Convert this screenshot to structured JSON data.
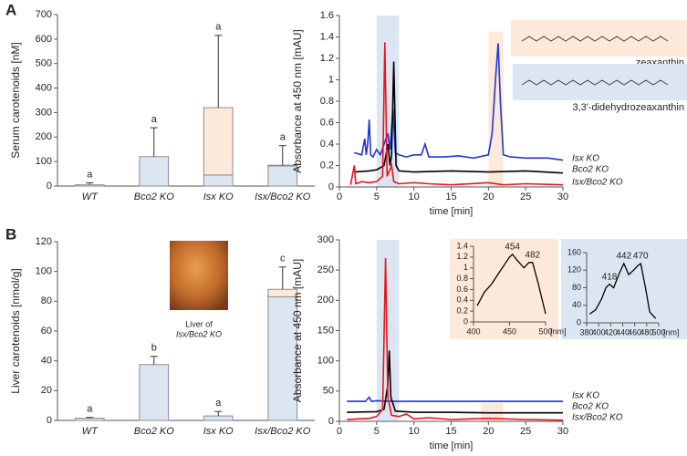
{
  "panel_labels": [
    "A",
    "B"
  ],
  "chart_data": [
    {
      "type": "bar",
      "ylabel": "Serum carotenoids [nM]",
      "categories": [
        "WT",
        "Bco2 KO",
        "Isx KO",
        "Isx/Bco2 KO"
      ],
      "series": [
        {
          "color": "#dce6f2",
          "values": [
            5,
            120,
            45,
            82
          ]
        },
        {
          "color": "#fde9d9",
          "values": [
            0,
            0,
            275,
            3
          ]
        }
      ],
      "errors": [
        8,
        118,
        295,
        80
      ],
      "letters": [
        "a",
        "a",
        "a",
        "a"
      ],
      "ylim": [
        0,
        700
      ],
      "yticks": [
        0,
        100,
        200,
        300,
        400,
        500,
        600,
        700
      ]
    },
    {
      "type": "line",
      "ylabel": "Absorbance at 450 nm [mAU]",
      "xlabel": "time [min]",
      "xlim": [
        0,
        30
      ],
      "xticks": [
        0,
        5,
        10,
        15,
        20,
        25,
        30
      ],
      "ylim": [
        0,
        1.6
      ],
      "yticks": [
        0,
        0.2,
        0.4,
        0.6,
        0.8,
        1,
        1.2,
        1.4,
        1.6
      ],
      "highlights": [
        {
          "x": [
            5,
            8
          ],
          "y": [
            0,
            1.6
          ],
          "color": "#dce6f2"
        },
        {
          "x": [
            20,
            22
          ],
          "y": [
            0,
            1.45
          ],
          "color": "#fde9d9"
        }
      ],
      "structures": [
        "zeaxanthin",
        "3,3′-didehydrozeaxanthin"
      ],
      "series": [
        {
          "name": "Isx KO",
          "color": "#1f35d6",
          "x": [
            2,
            3,
            3.4,
            3.6,
            3.8,
            4,
            4.2,
            4.5,
            5,
            5.5,
            6,
            6.5,
            6.8,
            7.2,
            7.5,
            8,
            9,
            10,
            11,
            11.5,
            12,
            14,
            16,
            18,
            20,
            20.5,
            21,
            21.3,
            21.6,
            22,
            23,
            25,
            28,
            30
          ],
          "values": [
            0.32,
            0.3,
            0.45,
            0.3,
            0.4,
            0.63,
            0.3,
            0.28,
            0.35,
            0.3,
            0.4,
            0.5,
            0.35,
            0.73,
            0.32,
            0.3,
            0.28,
            0.3,
            0.3,
            0.4,
            0.28,
            0.28,
            0.29,
            0.27,
            0.3,
            0.5,
            1.05,
            1.34,
            0.8,
            0.3,
            0.28,
            0.27,
            0.27,
            0.25
          ]
        },
        {
          "name": "Bco2 KO",
          "color": "#000000",
          "x": [
            2,
            4,
            5,
            6,
            6.5,
            6.8,
            7,
            7.3,
            7.6,
            8,
            10,
            15,
            20,
            25,
            30
          ],
          "values": [
            0.14,
            0.15,
            0.16,
            0.2,
            0.4,
            0.2,
            0.3,
            1.17,
            0.2,
            0.15,
            0.14,
            0.15,
            0.14,
            0.15,
            0.13
          ]
        },
        {
          "name": "Isx/Bco2 KO",
          "color": "#e8141b",
          "x": [
            1.5,
            2,
            2.2,
            3,
            4,
            5,
            5.8,
            6.1,
            6.4,
            7,
            7.3,
            8,
            10,
            12,
            15,
            20,
            22,
            25,
            30
          ],
          "values": [
            0.02,
            0.2,
            0.03,
            0.05,
            0.04,
            0.05,
            0.1,
            1.35,
            0.1,
            0.2,
            0.05,
            0.03,
            0.04,
            0.03,
            0.02,
            0.04,
            0.02,
            0.03,
            0.02
          ]
        }
      ]
    },
    {
      "type": "bar",
      "ylabel": "Liver carotenoids [nmol/g]",
      "categories": [
        "WT",
        "Bco2 KO",
        "Isx KO",
        "Isx/Bco2 KO"
      ],
      "series": [
        {
          "color": "#dce6f2",
          "values": [
            1.5,
            37.5,
            3,
            83
          ]
        },
        {
          "color": "#fde9d9",
          "values": [
            0,
            0,
            0,
            5
          ]
        }
      ],
      "errors": [
        0.5,
        5.5,
        3,
        15
      ],
      "letters": [
        "a",
        "b",
        "a",
        "c"
      ],
      "photo_caption": [
        "Liver of",
        "Isx/Bco2 KO"
      ],
      "ylim": [
        0,
        120
      ],
      "yticks": [
        0,
        20,
        40,
        60,
        80,
        100,
        120
      ]
    },
    {
      "type": "line",
      "ylabel": "Absorbance at 450 nm [mAU]",
      "xlabel": "time [min]",
      "xlim": [
        0,
        30
      ],
      "xticks": [
        0,
        5,
        10,
        15,
        20,
        25,
        30
      ],
      "ylim": [
        0,
        300
      ],
      "yticks": [
        0,
        50,
        100,
        150,
        200,
        250,
        300
      ],
      "highlights": [
        {
          "x": [
            5,
            8
          ],
          "y": [
            0,
            300
          ],
          "color": "#dce6f2"
        },
        {
          "x": [
            19,
            22
          ],
          "y": [
            0,
            30
          ],
          "color": "#fde9d9"
        }
      ],
      "series": [
        {
          "name": "Isx KO",
          "color": "#1f35d6",
          "x": [
            1,
            3.5,
            4,
            4.3,
            5,
            7,
            30
          ],
          "values": [
            33,
            33,
            40,
            33,
            34,
            33,
            33
          ]
        },
        {
          "name": "Bco2 KO",
          "color": "#000000",
          "x": [
            1,
            5,
            6,
            6.5,
            6.7,
            6.9,
            7.5,
            10,
            15,
            20,
            30
          ],
          "values": [
            15,
            16,
            20,
            60,
            117,
            40,
            17,
            15,
            15,
            14,
            14
          ]
        },
        {
          "name": "Isx/Bco2 KO",
          "color": "#e8141b",
          "x": [
            1,
            4,
            5,
            5.8,
            6.2,
            6.5,
            7,
            8,
            9,
            10,
            12,
            15,
            20,
            25,
            30
          ],
          "values": [
            3,
            5,
            8,
            20,
            270,
            40,
            10,
            8,
            12,
            4,
            6,
            3,
            5,
            3,
            2
          ]
        }
      ]
    },
    {
      "type": "line",
      "xlabel": "[nm]",
      "xlim": [
        400,
        500
      ],
      "xticks": [
        400,
        450,
        500
      ],
      "ylim": [
        0,
        1.4
      ],
      "yticks": [
        0,
        0.2,
        0.4,
        0.6,
        0.8,
        1,
        1.2,
        1.4
      ],
      "annotations": [
        {
          "x": 454,
          "y": 1.25
        },
        {
          "x": 482,
          "y": 1.1
        }
      ],
      "series": [
        {
          "color": "#000000",
          "x": [
            405,
            415,
            425,
            435,
            445,
            450,
            454,
            460,
            470,
            477,
            482,
            490,
            500
          ],
          "values": [
            0.3,
            0.55,
            0.7,
            0.9,
            1.1,
            1.2,
            1.25,
            1.15,
            1.0,
            1.1,
            1.1,
            0.7,
            0.15
          ]
        }
      ]
    },
    {
      "type": "line",
      "xlabel": "[nm]",
      "xlim": [
        380,
        500
      ],
      "xticks": [
        380,
        400,
        420,
        440,
        460,
        480,
        500
      ],
      "ylim": [
        0,
        160
      ],
      "yticks": [
        0,
        40,
        80,
        120,
        160
      ],
      "annotations": [
        {
          "x": 418,
          "y": 88
        },
        {
          "x": 442,
          "y": 135
        },
        {
          "x": 470,
          "y": 135
        }
      ],
      "series": [
        {
          "color": "#000000",
          "x": [
            385,
            395,
            405,
            412,
            418,
            425,
            435,
            442,
            450,
            458,
            465,
            470,
            478,
            485,
            495
          ],
          "values": [
            20,
            30,
            55,
            80,
            88,
            80,
            115,
            135,
            110,
            120,
            130,
            135,
            80,
            25,
            10
          ]
        }
      ]
    }
  ]
}
